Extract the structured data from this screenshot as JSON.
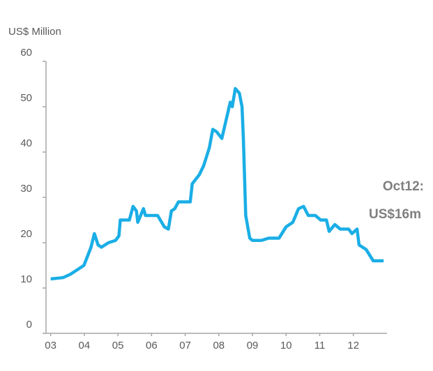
{
  "chart_data": {
    "type": "line",
    "y_axis_label": "US$ Million",
    "annotation": [
      "Oct12:",
      "US$16m"
    ],
    "x": [
      2003.0,
      2003.37,
      2003.58,
      2003.89,
      2003.99,
      2004.2,
      2004.3,
      2004.41,
      2004.51,
      2004.72,
      2004.93,
      2005.03,
      2005.07,
      2005.34,
      2005.45,
      2005.55,
      2005.59,
      2005.76,
      2005.82,
      2006.18,
      2006.38,
      2006.5,
      2006.59,
      2006.69,
      2006.8,
      2007.15,
      2007.21,
      2007.42,
      2007.55,
      2007.72,
      2007.82,
      2007.93,
      2008.09,
      2008.34,
      2008.4,
      2008.49,
      2008.61,
      2008.69,
      2008.73,
      2008.8,
      2008.92,
      2009.0,
      2009.27,
      2009.48,
      2009.79,
      2010.0,
      2010.2,
      2010.37,
      2010.52,
      2010.66,
      2010.87,
      2011.03,
      2011.2,
      2011.28,
      2011.45,
      2011.61,
      2011.86,
      2011.96,
      2012.11,
      2012.17,
      2012.38,
      2012.59,
      2012.9
    ],
    "series": [
      {
        "color": "#1aaee6",
        "values": [
          12,
          12.3,
          13,
          14.5,
          15,
          19,
          22,
          19.5,
          19,
          20,
          20.5,
          21.5,
          25,
          25,
          28,
          27,
          24.5,
          27.5,
          26,
          26,
          23.5,
          23,
          27,
          27.5,
          29,
          29,
          33,
          35,
          37,
          41,
          45,
          44.5,
          43,
          51,
          50,
          54,
          53,
          50,
          43,
          26,
          21,
          20.5,
          20.5,
          21,
          21,
          23.5,
          24.5,
          27.5,
          28,
          26,
          26,
          25,
          25,
          22.5,
          24,
          23,
          23,
          22,
          23,
          19.5,
          18.5,
          16,
          16
        ]
      }
    ],
    "xlim": [
      2002.8,
      2013.0
    ],
    "xticks": [
      {
        "value": 2003,
        "label": "03"
      },
      {
        "value": 2004,
        "label": "04"
      },
      {
        "value": 2005,
        "label": "05"
      },
      {
        "value": 2006,
        "label": "06"
      },
      {
        "value": 2007,
        "label": "07"
      },
      {
        "value": 2008,
        "label": "08"
      },
      {
        "value": 2009,
        "label": "09"
      },
      {
        "value": 2010,
        "label": "10"
      },
      {
        "value": 2011,
        "label": "11"
      },
      {
        "value": 2012,
        "label": "12"
      }
    ],
    "ylim": [
      0,
      60
    ],
    "yticks": [
      0,
      10,
      20,
      30,
      40,
      50,
      60
    ]
  }
}
